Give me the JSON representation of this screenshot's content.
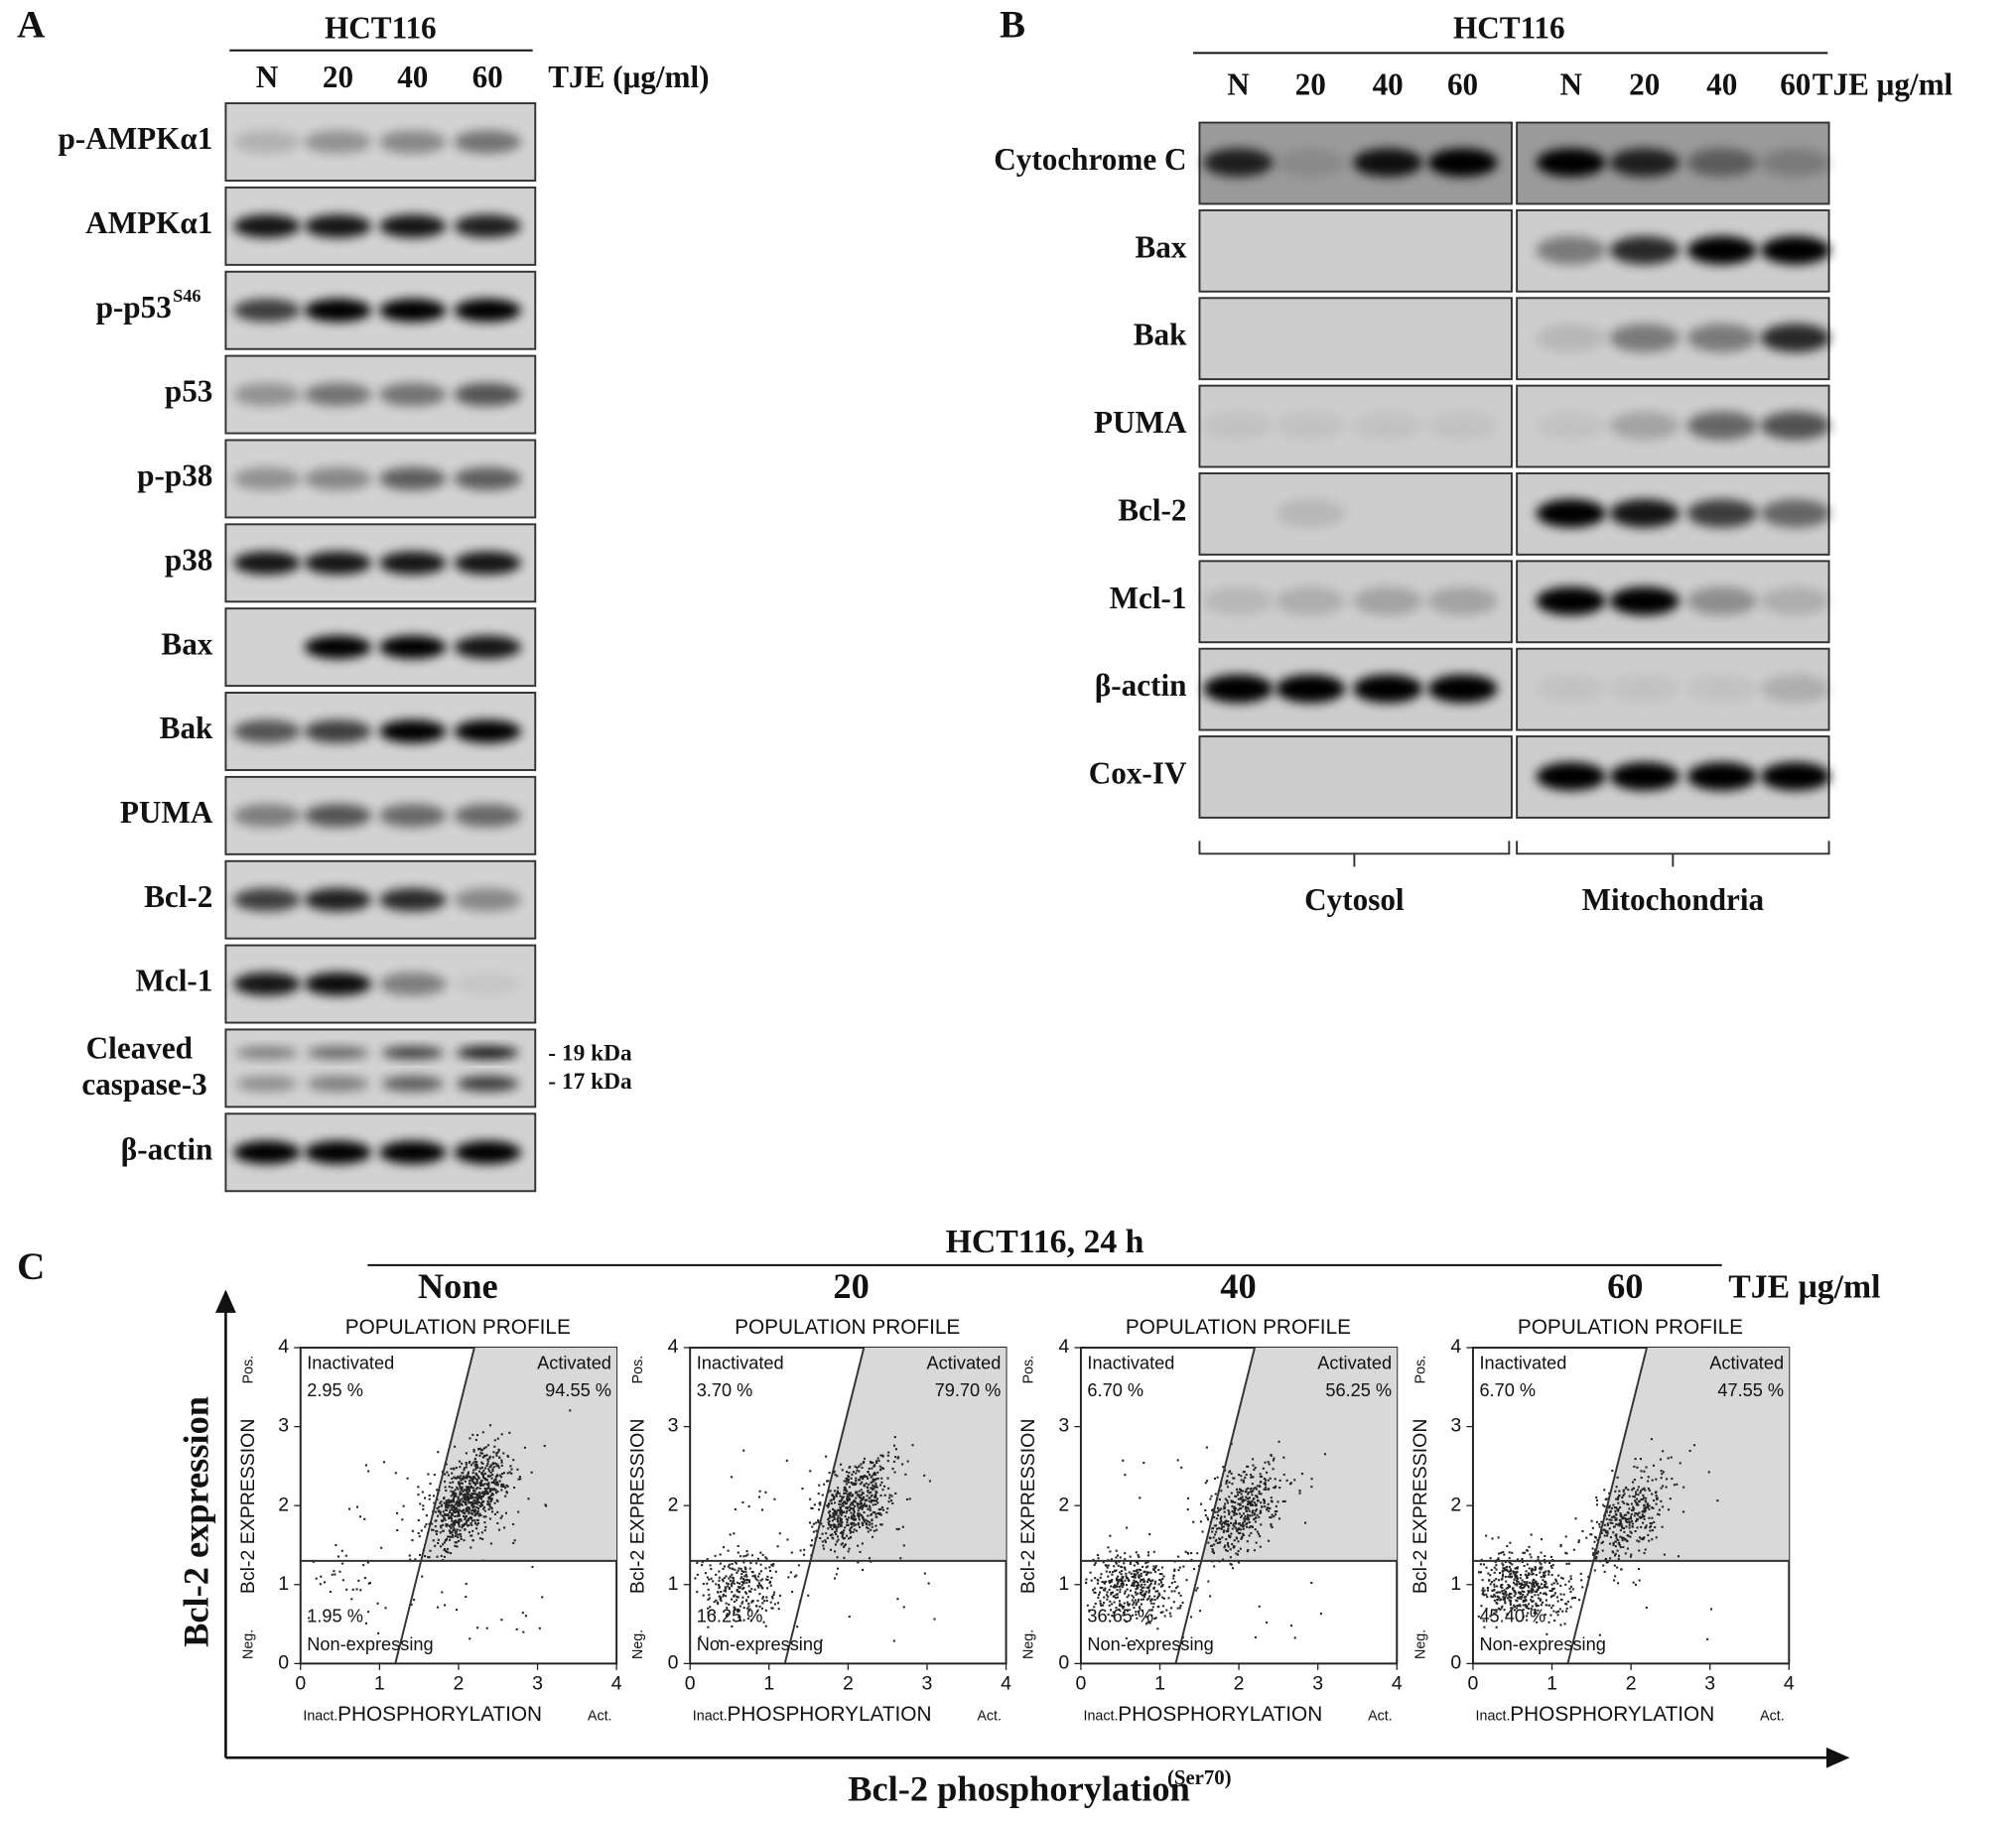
{
  "panel_a": {
    "letter": "A",
    "cell_line": "HCT116",
    "lanes": [
      "N",
      "20",
      "40",
      "60"
    ],
    "treatment": "TJE (μg/ml)",
    "rows": [
      {
        "text": "p-AMPKα1"
      },
      {
        "text": "AMPKα1"
      },
      {
        "text": "p-p53",
        "sup": "S46"
      },
      {
        "text": "p53"
      },
      {
        "text": "p-p38"
      },
      {
        "text": "p38"
      },
      {
        "text": "Bax"
      },
      {
        "text": "Bak"
      },
      {
        "text": "PUMA"
      },
      {
        "text": "Bcl-2"
      },
      {
        "text": "Mcl-1"
      },
      {
        "lines": [
          "Cleaved",
          "caspase-3"
        ]
      },
      {
        "text": "β-actin"
      }
    ],
    "size_markers": [
      "- 19 kDa",
      "- 17 kDa"
    ]
  },
  "panel_b": {
    "letter": "B",
    "cell_line": "HCT116",
    "lanes": [
      "N",
      "20",
      "40",
      "60",
      "N",
      "20",
      "40",
      "60"
    ],
    "treatment": "TJE μg/ml",
    "rows": [
      "Cytochrome C",
      "Bax",
      "Bak",
      "PUMA",
      "Bcl-2",
      "Mcl-1",
      "β-actin",
      "Cox-IV"
    ],
    "fractions": [
      "Cytosol",
      "Mitochondria"
    ]
  },
  "panel_c": {
    "letter": "C",
    "title": "HCT116, 24 h",
    "treatment": "TJE μg/ml",
    "y_label": "Bcl-2 expression",
    "x_label": "Bcl-2 phosphorylation",
    "x_label_sup": "(Ser70)",
    "plot_axes": {
      "y_title": "Bcl-2 EXPRESSION",
      "y_pos": "Pos.",
      "y_neg": "Neg.",
      "x_title": "PHOSPHORYLATION",
      "x_inact": "Inact.",
      "x_act": "Act.",
      "xlim": [
        0,
        4
      ],
      "ylim": [
        0,
        4
      ],
      "xticks": [
        0,
        1,
        2,
        3,
        4
      ],
      "yticks": [
        0,
        1,
        2,
        3,
        4
      ]
    },
    "quadrant_names": {
      "inactivated": "Inactivated",
      "activated": "Activated",
      "non_expressing": "Non-expressing"
    },
    "plots": [
      {
        "condition": "None",
        "title": "POPULATION PROFILE",
        "inactivated": "2.95 %",
        "activated": "94.55 %",
        "non_expressing": "1.95 %"
      },
      {
        "condition": "20",
        "title": "POPULATION PROFILE",
        "inactivated": "3.70 %",
        "activated": "79.70 %",
        "non_expressing": "16.25 %"
      },
      {
        "condition": "40",
        "title": "POPULATION PROFILE",
        "inactivated": "6.70 %",
        "activated": "56.25 %",
        "non_expressing": "36.65 %"
      },
      {
        "condition": "60",
        "title": "POPULATION PROFILE",
        "inactivated": "6.70 %",
        "activated": "47.55 %",
        "non_expressing": "45.40 %"
      }
    ]
  }
}
